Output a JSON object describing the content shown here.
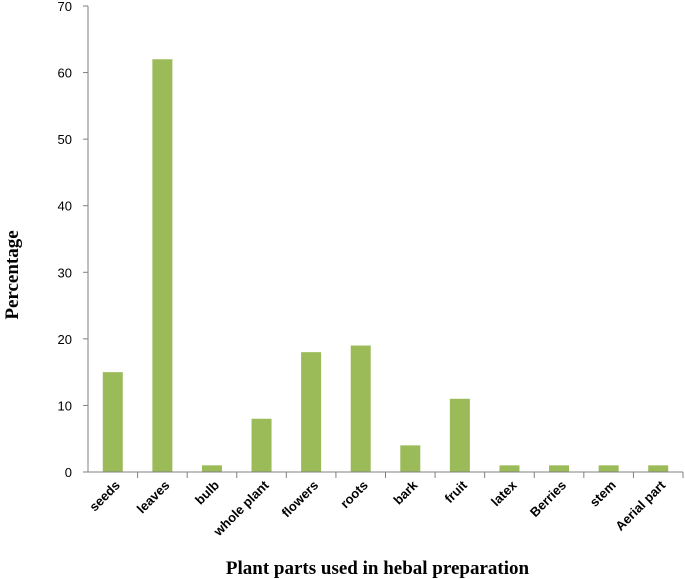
{
  "chart_data": {
    "type": "bar",
    "categories": [
      "seeds",
      "leaves",
      "bulb",
      "whole plant",
      "flowers",
      "roots",
      "bark",
      "fruit",
      "latex",
      "Berries",
      "stem",
      "Aerial part"
    ],
    "values": [
      15,
      62,
      1,
      8,
      18,
      19,
      4,
      11,
      1,
      1,
      1,
      1
    ],
    "xlabel": "Plant parts used in hebal preparation",
    "ylabel": "Percentage",
    "ylim": [
      0,
      70
    ],
    "yticks": [
      0,
      10,
      20,
      30,
      40,
      50,
      60,
      70
    ],
    "grid": false,
    "legend": "none",
    "bar_color": "#9bbb59"
  }
}
